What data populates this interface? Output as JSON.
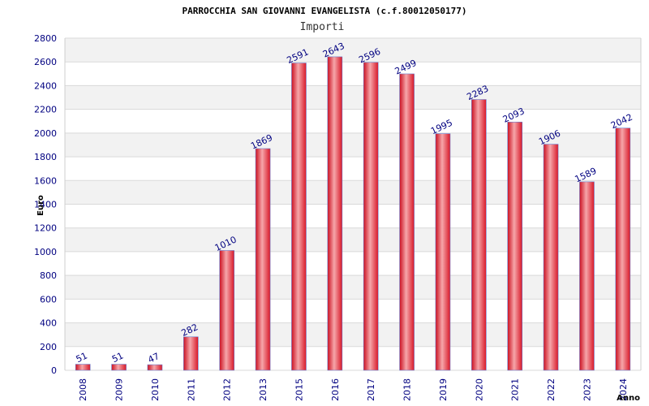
{
  "chart_data": {
    "type": "bar",
    "title": "PARROCCHIA SAN GIOVANNI EVANGELISTA (c.f.80012050177)",
    "subtitle": "Importi",
    "ylabel": "Euro",
    "xlabel": "Anno",
    "categories": [
      "2008",
      "2009",
      "2010",
      "2011",
      "2012",
      "2013",
      "2015",
      "2016",
      "2017",
      "2018",
      "2019",
      "2020",
      "2021",
      "2022",
      "2023",
      "2024"
    ],
    "values": [
      51,
      51,
      47,
      282,
      1010,
      1869,
      2591,
      2643,
      2596,
      2499,
      1995,
      2283,
      2093,
      1906,
      1589,
      2042
    ],
    "ylim": [
      0,
      2800
    ],
    "yticks": [
      0,
      200,
      400,
      600,
      800,
      1000,
      1200,
      1400,
      1600,
      1800,
      2000,
      2200,
      2400,
      2600,
      2800
    ],
    "grid": true,
    "colors": {
      "bar_edge": "#d91a2a",
      "bar_mid": "#f4a0a4",
      "bar_outline": "#6a7fd0",
      "tick_text": "#000080",
      "band": "#f2f2f2",
      "gridline": "#d9d9d9"
    }
  }
}
